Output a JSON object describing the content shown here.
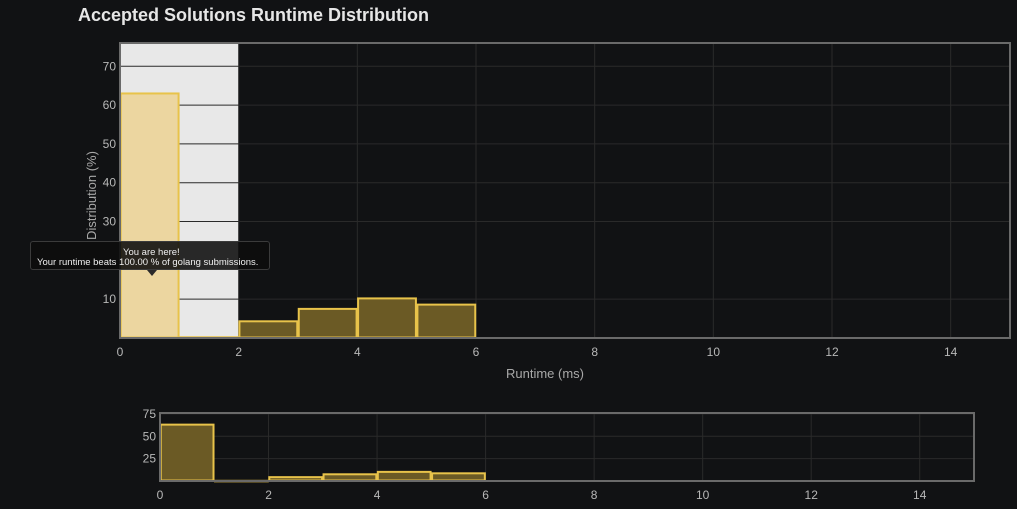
{
  "title": "Accepted Solutions Runtime Distribution",
  "tooltip": {
    "line1": "You are here!",
    "line2": "Your runtime beats 100.00 % of golang submissions."
  },
  "colors": {
    "bar_fill": "#6b5a25",
    "bar_stroke": "#e8c34a",
    "highlight_fill": "#ecd6a0",
    "selection_bg": "#e8e8e8",
    "grid": "#2a2a2a",
    "frame": "#6a6a6a"
  },
  "chart_data": [
    {
      "type": "bar",
      "role": "main",
      "xlabel": "Runtime (ms)",
      "ylabel": "Distribution (%)",
      "xlim": [
        0,
        15
      ],
      "ylim": [
        0,
        76
      ],
      "xticks": [
        0,
        2,
        4,
        6,
        8,
        10,
        12,
        14
      ],
      "yticks": [
        10,
        30,
        40,
        50,
        60,
        70
      ],
      "grid": true,
      "highlight_range": [
        0,
        2
      ],
      "bins": [
        {
          "x0": 0,
          "x1": 1,
          "value": 63,
          "highlight": true
        },
        {
          "x0": 1,
          "x1": 2,
          "value": 0.2
        },
        {
          "x0": 2,
          "x1": 3,
          "value": 4.3
        },
        {
          "x0": 3,
          "x1": 4,
          "value": 7.5
        },
        {
          "x0": 4,
          "x1": 5,
          "value": 10.2
        },
        {
          "x0": 5,
          "x1": 6,
          "value": 8.6
        }
      ]
    },
    {
      "type": "bar",
      "role": "overview",
      "xlim": [
        0,
        15
      ],
      "ylim": [
        0,
        76
      ],
      "xticks": [
        0,
        2,
        4,
        6,
        8,
        10,
        12,
        14
      ],
      "yticks": [
        25,
        50,
        75
      ],
      "grid": true,
      "bins": [
        {
          "x0": 0,
          "x1": 1,
          "value": 63
        },
        {
          "x0": 1,
          "x1": 2,
          "value": 0.2
        },
        {
          "x0": 2,
          "x1": 3,
          "value": 4.3
        },
        {
          "x0": 3,
          "x1": 4,
          "value": 7.5
        },
        {
          "x0": 4,
          "x1": 5,
          "value": 10.2
        },
        {
          "x0": 5,
          "x1": 6,
          "value": 8.6
        }
      ]
    }
  ]
}
